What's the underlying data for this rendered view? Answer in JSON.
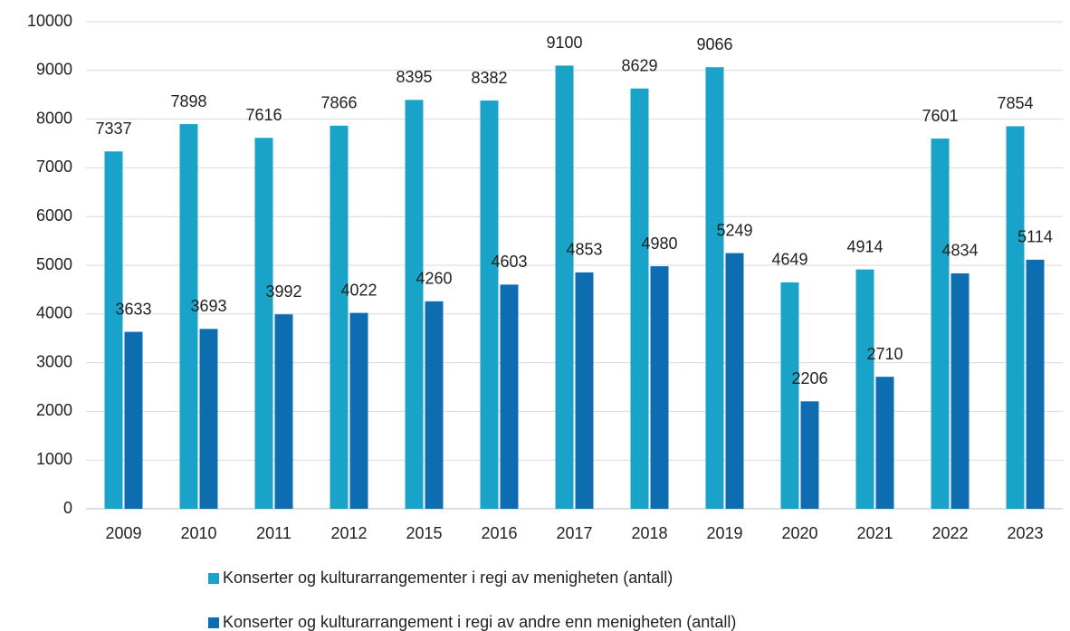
{
  "chart_data": {
    "type": "bar",
    "categories": [
      "2009",
      "2010",
      "2011",
      "2012",
      "2015",
      "2016",
      "2017",
      "2018",
      "2019",
      "2020",
      "2021",
      "2022",
      "2023"
    ],
    "series": [
      {
        "name": "Konserter og kulturarrangementer i regi av menigheten (antall)",
        "color": "#19a3c8",
        "values": [
          7337,
          7898,
          7616,
          7866,
          8395,
          8382,
          9100,
          8629,
          9066,
          4649,
          4914,
          7601,
          7854
        ]
      },
      {
        "name": "Konserter og kulturarrangement i regi av andre enn menigheten (antall)",
        "color": "#0e6db0",
        "values": [
          3633,
          3693,
          3992,
          4022,
          4260,
          4603,
          4853,
          4980,
          5249,
          2206,
          2710,
          4834,
          5114
        ]
      }
    ],
    "ylim": [
      0,
      10000
    ],
    "yticks": [
      0,
      1000,
      2000,
      3000,
      4000,
      5000,
      6000,
      7000,
      8000,
      9000,
      10000
    ],
    "grid": true,
    "legend": "bottom"
  }
}
